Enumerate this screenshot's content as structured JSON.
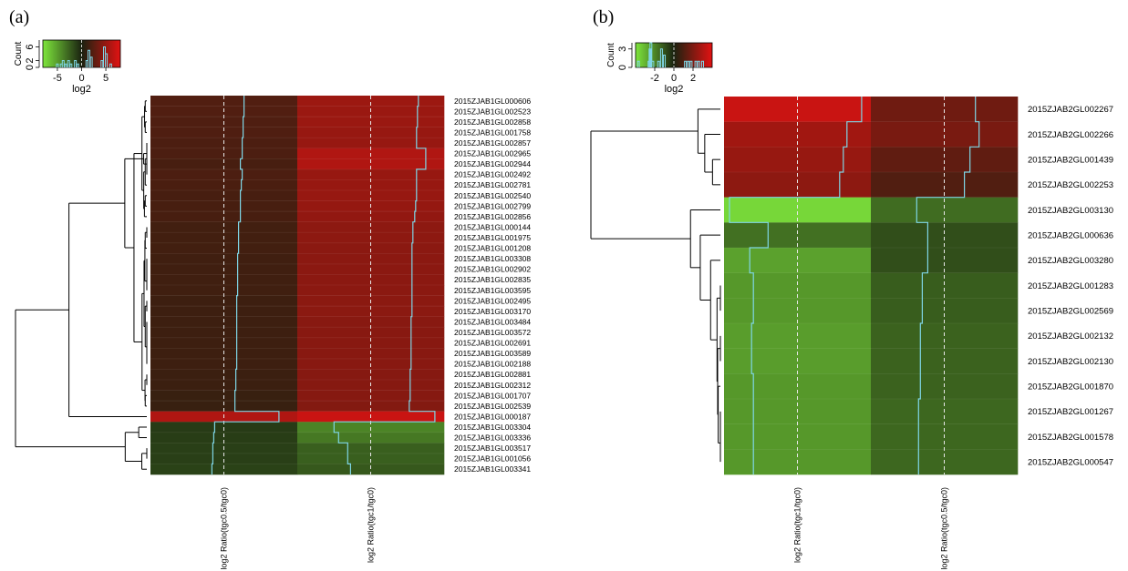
{
  "chart_data": [
    {
      "type": "heatmap",
      "panel_label": "(a)",
      "columns": [
        "log2 Ratio(tgc0.5/tgc0)",
        "log2 Ratio(tgc1/tgc0)"
      ],
      "rows": [
        "2015ZJAB1GL000606",
        "2015ZJAB1GL002523",
        "2015ZJAB1GL002858",
        "2015ZJAB1GL001758",
        "2015ZJAB1GL002857",
        "2015ZJAB1GL002965",
        "2015ZJAB1GL002944",
        "2015ZJAB1GL002492",
        "2015ZJAB1GL002781",
        "2015ZJAB1GL002540",
        "2015ZJAB1GL002799",
        "2015ZJAB1GL002856",
        "2015ZJAB1GL000144",
        "2015ZJAB1GL001975",
        "2015ZJAB1GL001208",
        "2015ZJAB1GL003308",
        "2015ZJAB1GL002902",
        "2015ZJAB1GL002835",
        "2015ZJAB1GL003595",
        "2015ZJAB1GL002495",
        "2015ZJAB1GL003170",
        "2015ZJAB1GL003484",
        "2015ZJAB1GL003572",
        "2015ZJAB1GL002691",
        "2015ZJAB1GL003589",
        "2015ZJAB1GL002188",
        "2015ZJAB1GL002881",
        "2015ZJAB1GL002312",
        "2015ZJAB1GL001707",
        "2015ZJAB1GL002539",
        "2015ZJAB1GL000187",
        "2015ZJAB1GL003304",
        "2015ZJAB1GL003336",
        "2015ZJAB1GL003517",
        "2015ZJAB1GL001056",
        "2015ZJAB1GL003341"
      ],
      "values": [
        [
          2.2,
          5.2
        ],
        [
          2.2,
          5.1
        ],
        [
          2.1,
          5.1
        ],
        [
          2.1,
          5.0
        ],
        [
          2.0,
          5.0
        ],
        [
          2.0,
          6.0
        ],
        [
          1.8,
          6.0
        ],
        [
          2.0,
          5.0
        ],
        [
          1.9,
          5.0
        ],
        [
          1.8,
          5.0
        ],
        [
          1.8,
          4.9
        ],
        [
          1.8,
          4.8
        ],
        [
          1.6,
          4.6
        ],
        [
          1.6,
          4.6
        ],
        [
          1.6,
          4.5
        ],
        [
          1.5,
          4.5
        ],
        [
          1.5,
          4.5
        ],
        [
          1.5,
          4.5
        ],
        [
          1.5,
          4.5
        ],
        [
          1.4,
          4.5
        ],
        [
          1.4,
          4.5
        ],
        [
          1.4,
          4.4
        ],
        [
          1.4,
          4.4
        ],
        [
          1.4,
          4.4
        ],
        [
          1.4,
          4.4
        ],
        [
          1.4,
          4.4
        ],
        [
          1.3,
          4.3
        ],
        [
          1.3,
          4.3
        ],
        [
          1.2,
          4.3
        ],
        [
          1.2,
          4.2
        ],
        [
          6.0,
          7.0
        ],
        [
          -1.0,
          -4.0
        ],
        [
          -1.1,
          -3.5
        ],
        [
          -1.2,
          -2.5
        ],
        [
          -1.2,
          -2.5
        ],
        [
          -1.3,
          -2.2
        ]
      ],
      "color_key": {
        "ticks": [
          "-5",
          "0",
          "5"
        ],
        "tick_values": [
          -5,
          0,
          5
        ],
        "range": [
          -8,
          8
        ],
        "xlabel": "log2",
        "ylabel": "Count",
        "count_ticks": [
          "0",
          "2",
          "6"
        ],
        "count_tick_values": [
          0,
          2,
          6
        ],
        "count_max": 8,
        "histogram": [
          {
            "x": -5.0,
            "c": 1
          },
          {
            "x": -4.2,
            "c": 1
          },
          {
            "x": -3.8,
            "c": 2
          },
          {
            "x": -3.3,
            "c": 1
          },
          {
            "x": -2.7,
            "c": 2
          },
          {
            "x": -2.2,
            "c": 1
          },
          {
            "x": -1.3,
            "c": 2
          },
          {
            "x": -0.8,
            "c": 1
          },
          {
            "x": 1.1,
            "c": 2
          },
          {
            "x": 1.5,
            "c": 5
          },
          {
            "x": 2.0,
            "c": 3
          },
          {
            "x": 4.2,
            "c": 2
          },
          {
            "x": 4.7,
            "c": 6
          },
          {
            "x": 5.1,
            "c": 4
          },
          {
            "x": 6.0,
            "c": 1
          }
        ]
      }
    },
    {
      "type": "heatmap",
      "panel_label": "(b)",
      "columns": [
        "log2 Ratio(tgc1/tgc0)",
        "log2 Ratio(tgc0.5/tgc0)"
      ],
      "rows": [
        "2015ZJAB2GL002267",
        "2015ZJAB2GL002266",
        "2015ZJAB2GL001439",
        "2015ZJAB2GL002253",
        "2015ZJAB2GL003130",
        "2015ZJAB2GL000636",
        "2015ZJAB2GL003280",
        "2015ZJAB2GL001283",
        "2015ZJAB2GL002569",
        "2015ZJAB2GL002132",
        "2015ZJAB2GL002130",
        "2015ZJAB2GL001870",
        "2015ZJAB2GL001267",
        "2015ZJAB2GL001578",
        "2015ZJAB2GL000547"
      ],
      "values": [
        [
          3.5,
          1.7
        ],
        [
          2.7,
          1.9
        ],
        [
          2.5,
          1.4
        ],
        [
          2.3,
          1.1
        ],
        [
          -3.7,
          -1.5
        ],
        [
          -1.6,
          -0.9
        ],
        [
          -2.6,
          -0.9
        ],
        [
          -2.4,
          -1.2
        ],
        [
          -2.4,
          -1.2
        ],
        [
          -2.5,
          -1.3
        ],
        [
          -2.5,
          -1.3
        ],
        [
          -2.4,
          -1.3
        ],
        [
          -2.4,
          -1.4
        ],
        [
          -2.4,
          -1.4
        ],
        [
          -2.4,
          -1.4
        ]
      ],
      "color_key": {
        "ticks": [
          "-2",
          "0",
          "2"
        ],
        "tick_values": [
          -2,
          0,
          2
        ],
        "range": [
          -4,
          4
        ],
        "xlabel": "log2",
        "ylabel": "Count",
        "count_ticks": [
          "0",
          "3"
        ],
        "count_tick_values": [
          0,
          3
        ],
        "count_max": 4,
        "histogram": [
          {
            "x": -3.7,
            "c": 1
          },
          {
            "x": -2.6,
            "c": 1
          },
          {
            "x": -2.5,
            "c": 3
          },
          {
            "x": -2.4,
            "c": 4
          },
          {
            "x": -2.2,
            "c": 1
          },
          {
            "x": -1.6,
            "c": 1
          },
          {
            "x": -1.3,
            "c": 3
          },
          {
            "x": -1.0,
            "c": 2
          },
          {
            "x": 1.2,
            "c": 1
          },
          {
            "x": 1.5,
            "c": 1
          },
          {
            "x": 1.8,
            "c": 1
          },
          {
            "x": 2.3,
            "c": 1
          },
          {
            "x": 2.6,
            "c": 1
          },
          {
            "x": 3.0,
            "c": 1
          }
        ]
      }
    }
  ],
  "colors": {
    "low": "#7ee63c",
    "mid": "#1a2210",
    "high": "#e21212",
    "trace": "#7fd6e6"
  }
}
